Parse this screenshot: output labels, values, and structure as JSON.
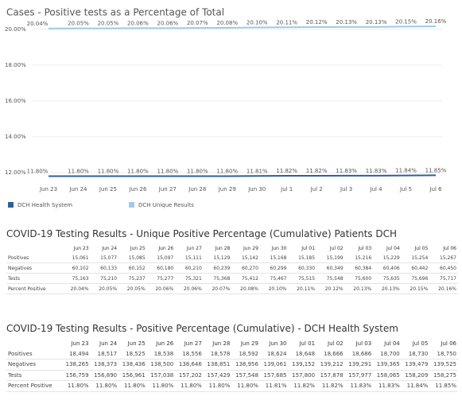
{
  "chart_data": {
    "type": "line",
    "title": "Cases - Positive tests as a Percentage of Total",
    "categories": [
      "Jun 23",
      "Jun 24",
      "Jun 25",
      "Jun 26",
      "Jun 27",
      "Jun 28",
      "Jun 29",
      "Jun 30",
      "Jul 1",
      "Jul 2",
      "Jul 3",
      "Jul 4",
      "Jul 5",
      "Jul 6"
    ],
    "series": [
      {
        "name": "DCH Health System",
        "color": "#2f5f98",
        "values": [
          11.8,
          11.8,
          11.8,
          11.8,
          11.8,
          11.8,
          11.8,
          11.81,
          11.82,
          11.82,
          11.83,
          11.83,
          11.84,
          11.85
        ],
        "value_labels": [
          "11.80%",
          "11.80%",
          "11.80%",
          "11.80%",
          "11.80%",
          "11.80%",
          "11.80%",
          "11.81%",
          "11.82%",
          "11.82%",
          "11.83%",
          "11.83%",
          "11.84%",
          "11.85%"
        ]
      },
      {
        "name": "DCH Unique Results",
        "color": "#9fcbe6",
        "values": [
          20.04,
          20.05,
          20.05,
          20.06,
          20.06,
          20.07,
          20.08,
          20.1,
          20.11,
          20.12,
          20.13,
          20.13,
          20.15,
          20.16
        ],
        "value_labels": [
          "20.04%",
          "20.05%",
          "20.05%",
          "20.06%",
          "20.06%",
          "20.07%",
          "20.08%",
          "20.10%",
          "20.11%",
          "20.12%",
          "20.13%",
          "20.13%",
          "20.15%",
          "20.16%"
        ]
      }
    ],
    "ylim": [
      11.6,
      20.3
    ],
    "yticks": [
      {
        "value": 12,
        "label": "12.00%"
      },
      {
        "value": 14,
        "label": "14.00%"
      },
      {
        "value": 16,
        "label": "16.00%"
      },
      {
        "value": 18,
        "label": "18.00%"
      },
      {
        "value": 20,
        "label": "20.00%"
      }
    ],
    "grid": true
  },
  "tables": [
    {
      "title": "COVID-19 Testing Results - Unique Positive Percentage (Cumulative) Patients DCH",
      "columns": [
        "Jun 23",
        "Jun 24",
        "Jun 25",
        "Jun 26",
        "Jun 27",
        "Jun 28",
        "Jun 29",
        "Jun 30",
        "Jul 01",
        "Jul 02",
        "Jul 03",
        "Jul 04",
        "Jul 05",
        "Jul 06"
      ],
      "rows": [
        {
          "label": "Positives",
          "cells": [
            "15,061",
            "15,077",
            "15,085",
            "15,097",
            "15,111",
            "15,129",
            "15,142",
            "15,168",
            "15,185",
            "15,199",
            "15,216",
            "15,229",
            "15,254",
            "15,267"
          ]
        },
        {
          "label": "Negatives",
          "cells": [
            "60,102",
            "60,133",
            "60,152",
            "60,180",
            "60,210",
            "60,239",
            "60,270",
            "60,299",
            "60,330",
            "60,349",
            "60,384",
            "60,406",
            "60,442",
            "60,450"
          ]
        },
        {
          "label": "Tests",
          "cells": [
            "75,163",
            "75,210",
            "75,237",
            "75,277",
            "75,321",
            "75,368",
            "75,412",
            "75,467",
            "75,515",
            "75,548",
            "75,600",
            "75,635",
            "75,696",
            "75,717"
          ]
        },
        {
          "label": "Percent Positive",
          "cells": [
            "20.04%",
            "20.05%",
            "20.05%",
            "20.06%",
            "20.06%",
            "20.07%",
            "20.08%",
            "20.10%",
            "20.11%",
            "20.12%",
            "20.13%",
            "20.13%",
            "20.15%",
            "20.16%"
          ]
        }
      ]
    },
    {
      "title": "COVID-19 Testing Results - Positive Percentage (Cumulative) - DCH Health System",
      "columns": [
        "Jun 23",
        "Jun 24",
        "Jun 25",
        "Jun 26",
        "Jun 27",
        "Jun 28",
        "Jun 29",
        "Jun 30",
        "Jul 01",
        "Jul 02",
        "Jul 03",
        "Jul 04",
        "Jul 05",
        "Jul 06"
      ],
      "rows": [
        {
          "label": "Positives",
          "cells": [
            "18,494",
            "18,517",
            "18,525",
            "18,538",
            "18,556",
            "18,578",
            "18,592",
            "18,624",
            "18,648",
            "18,666",
            "18,686",
            "18,700",
            "18,730",
            "18,750"
          ]
        },
        {
          "label": "Negatives",
          "cells": [
            "138,265",
            "138,373",
            "138,436",
            "138,500",
            "138,646",
            "138,851",
            "138,956",
            "139,061",
            "139,152",
            "139,212",
            "139,291",
            "139,365",
            "139,479",
            "139,525"
          ]
        },
        {
          "label": "Tests",
          "cells": [
            "156,759",
            "156,890",
            "156,961",
            "157,038",
            "157,202",
            "157,429",
            "157,548",
            "157,685",
            "157,800",
            "157,878",
            "157,977",
            "158,065",
            "158,209",
            "158,275"
          ]
        },
        {
          "label": "Percent Positive",
          "cells": [
            "11.80%",
            "11.80%",
            "11.80%",
            "11.80%",
            "11.80%",
            "11.80%",
            "11.80%",
            "11.81%",
            "11.82%",
            "11.82%",
            "11.83%",
            "11.83%",
            "11.84%",
            "11.85%"
          ]
        }
      ]
    }
  ]
}
